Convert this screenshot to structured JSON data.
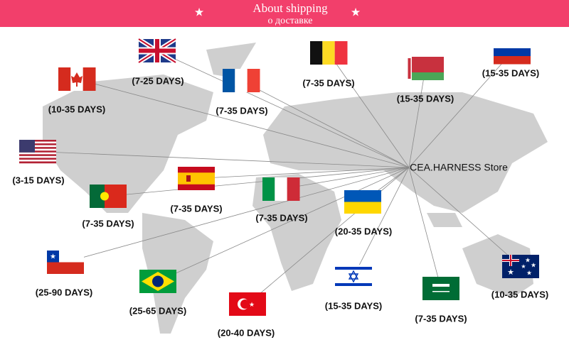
{
  "header": {
    "title": "About shipping",
    "subtitle": "о доставке"
  },
  "store": "CEA.HARNESS Store",
  "destinations": [
    {
      "label": "(7-25 DAYS)"
    },
    {
      "label": "(10-35 DAYS)"
    },
    {
      "label": "(7-35 DAYS)"
    },
    {
      "label": "(7-35 DAYS)"
    },
    {
      "label": "(15-35 DAYS)"
    },
    {
      "label": "(15-35 DAYS)"
    },
    {
      "label": "(3-15 DAYS)"
    },
    {
      "label": "(7-35 DAYS)"
    },
    {
      "label": "(7-35 DAYS)"
    },
    {
      "label": "(7-35 DAYS)"
    },
    {
      "label": "(20-35 DAYS)"
    },
    {
      "label": "(25-90 DAYS)"
    },
    {
      "label": "(25-65 DAYS)"
    },
    {
      "label": "(20-40 DAYS)"
    },
    {
      "label": "(15-35 DAYS)"
    },
    {
      "label": "(7-35 DAYS)"
    },
    {
      "label": "(10-35 DAYS)"
    }
  ]
}
